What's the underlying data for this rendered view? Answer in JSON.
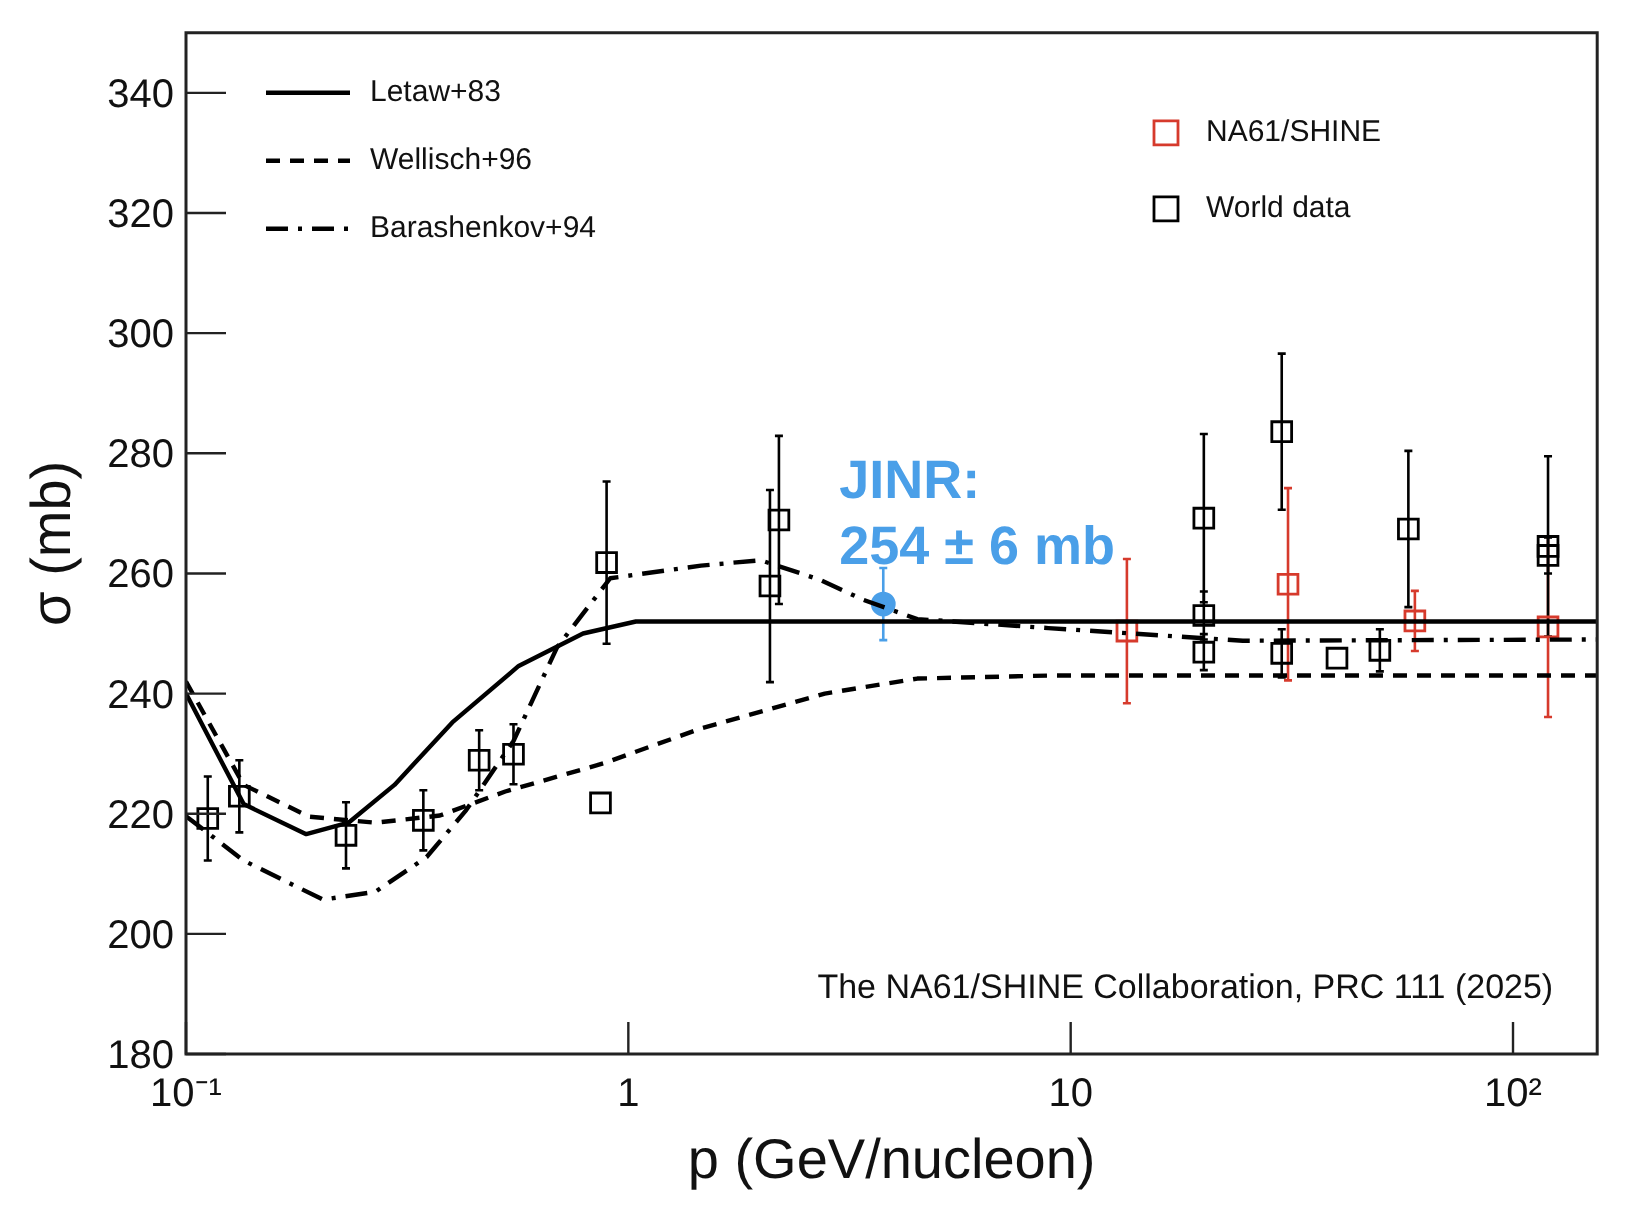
{
  "chart_data": {
    "type": "scatter",
    "xlabel": "p (GeV/nucleon)",
    "ylabel": "σ (mb)",
    "log": "x",
    "xlim": [
      0.1,
      155
    ],
    "ylim": [
      180,
      350
    ],
    "xticks": [
      {
        "value": 0.1,
        "label": "10⁻¹"
      },
      1,
      10,
      {
        "value": 100,
        "label": "10²"
      }
    ],
    "yticks": [
      180,
      200,
      220,
      240,
      260,
      280,
      300,
      320,
      340
    ],
    "grid": false,
    "legend": "top left",
    "series": [
      {
        "name": "Letaw+83",
        "type": "line",
        "line_style": "solid",
        "marker": "none",
        "color": "#000000",
        "x": [
          0.1,
          0.135,
          0.187,
          0.233,
          0.296,
          0.4,
          0.565,
          0.79,
          1.04,
          2,
          10,
          155
        ],
        "values": [
          240,
          221.6,
          216.6,
          218.5,
          224.8,
          235.2,
          244.6,
          250,
          252,
          252,
          252,
          252
        ]
      },
      {
        "name": "Wellisch+96",
        "type": "line",
        "line_style": "dashed",
        "marker": "none",
        "color": "#000000",
        "x": [
          0.1,
          0.135,
          0.19,
          0.268,
          0.375,
          0.527,
          0.88,
          1.46,
          2.78,
          4.5,
          8.9,
          155
        ],
        "values": [
          242,
          224.8,
          219.5,
          218.5,
          219.7,
          223.7,
          228.4,
          234.2,
          240,
          242.5,
          243,
          243
        ]
      },
      {
        "name": "Barashenkov+94",
        "type": "line",
        "line_style": "dotted",
        "marker": "none",
        "color": "#000000",
        "x": [
          0.1,
          0.135,
          0.204,
          0.268,
          0.35,
          0.43,
          0.55,
          0.69,
          0.91,
          1.46,
          1.99,
          2.7,
          3.4,
          4.5,
          8.9,
          24.5,
          155
        ],
        "values": [
          219.6,
          212.2,
          205.7,
          207,
          212.8,
          220.6,
          232.1,
          247.7,
          259.2,
          261.3,
          262.2,
          259,
          255.6,
          252.4,
          250.9,
          248.8,
          249
        ]
      },
      {
        "name": "NA61/SHINE",
        "marker": "square",
        "color": "#d63a2c",
        "x": [
          13.4,
          31,
          60,
          120
        ],
        "values": [
          250.4,
          258.2,
          252.1,
          251.1
        ],
        "errors": [
          12,
          16,
          5,
          15
        ]
      },
      {
        "name": "World data",
        "marker": "square",
        "color": "#000000",
        "x": [
          0.112,
          0.132,
          0.23,
          0.344,
          0.46,
          0.55,
          0.865,
          0.893,
          2.09,
          2.19,
          20,
          20,
          20,
          30,
          30,
          40,
          50,
          58,
          120,
          120
        ],
        "values": [
          219.2,
          222.9,
          216.4,
          218.9,
          228.9,
          229.9,
          221.8,
          261.8,
          257.9,
          268.9,
          269.2,
          253,
          246.9,
          283.6,
          246.7,
          245.9,
          247.2,
          267.4,
          264.5,
          263
        ],
        "errors": [
          7,
          6,
          5.5,
          5,
          5,
          5,
          null,
          13.5,
          16,
          14,
          14,
          4,
          3,
          13,
          4,
          null,
          3.5,
          13,
          15,
          3
        ]
      },
      {
        "marker": "circle",
        "color": "#4a9fe8",
        "x": [
          3.77
        ],
        "values": [
          254.9
        ],
        "errors": [
          6
        ]
      }
    ],
    "annotations": [
      {
        "text": "JINR:\n254 ± 6 mb",
        "x": 3.77,
        "y": 254.9
      },
      "The NA61/SHINE Collaboration, PRC 111 (2025)"
    ]
  }
}
